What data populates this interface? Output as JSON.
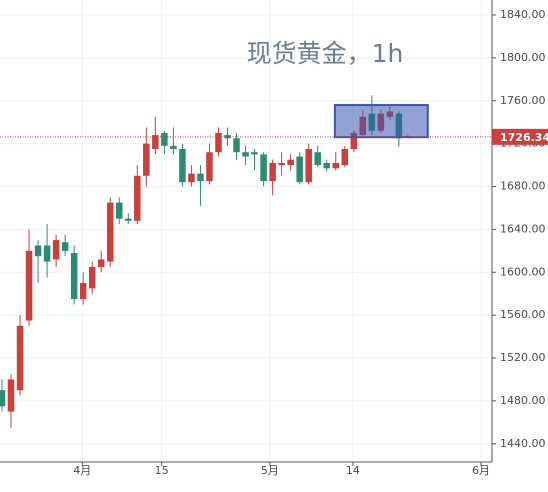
{
  "chart_data": {
    "type": "candlestick",
    "title": "现货黄金，1h",
    "up_color": "#c9403c",
    "down_color": "#2e8a72",
    "open": [
      1490,
      1470,
      1490,
      1555,
      1625,
      1625,
      1612,
      1628,
      1618,
      1575,
      1585,
      1605,
      1610,
      1665,
      1650,
      1648,
      1690,
      1715,
      1730,
      1718,
      1715,
      1684,
      1692,
      1685,
      1712,
      1728,
      1725,
      1712,
      1712,
      1710,
      1685,
      1700,
      1700,
      1708,
      1684,
      1712,
      1702,
      1697,
      1700,
      1715,
      1728,
      1748,
      1732,
      1745,
      1748,
      1726
    ],
    "high": [
      1500,
      1505,
      1560,
      1640,
      1630,
      1645,
      1635,
      1635,
      1625,
      1600,
      1610,
      1620,
      1670,
      1670,
      1655,
      1700,
      1735,
      1745,
      1732,
      1735,
      1720,
      1700,
      1700,
      1720,
      1735,
      1735,
      1730,
      1718,
      1715,
      1712,
      1705,
      1712,
      1710,
      1712,
      1720,
      1718,
      1705,
      1712,
      1718,
      1732,
      1752,
      1765,
      1752,
      1755,
      1750,
      1728
    ],
    "low": [
      1470,
      1455,
      1485,
      1550,
      1590,
      1595,
      1605,
      1615,
      1570,
      1570,
      1580,
      1600,
      1605,
      1645,
      1645,
      1645,
      1680,
      1710,
      1710,
      1710,
      1680,
      1680,
      1662,
      1682,
      1708,
      1718,
      1705,
      1700,
      1695,
      1680,
      1672,
      1690,
      1695,
      1682,
      1682,
      1698,
      1694,
      1695,
      1698,
      1712,
      1725,
      1728,
      1730,
      1742,
      1717,
      1725
    ],
    "close": [
      1475,
      1500,
      1550,
      1620,
      1615,
      1610,
      1630,
      1620,
      1575,
      1590,
      1605,
      1612,
      1665,
      1650,
      1648,
      1690,
      1720,
      1728,
      1718,
      1715,
      1684,
      1692,
      1685,
      1712,
      1730,
      1725,
      1712,
      1708,
      1710,
      1685,
      1702,
      1702,
      1705,
      1684,
      1715,
      1700,
      1697,
      1702,
      1715,
      1730,
      1745,
      1732,
      1748,
      1750,
      1725,
      1727
    ],
    "xlim": [
      -0.22,
      54.32
    ],
    "xticks": [
      {
        "value": 8.9,
        "label": "4月"
      },
      {
        "value": 17.7,
        "label": "15"
      },
      {
        "value": 29.7,
        "label": "5月"
      },
      {
        "value": 38.9,
        "label": "14"
      },
      {
        "value": 53.1,
        "label": "6月"
      }
    ],
    "ylim": [
      1423,
      1854
    ],
    "yticks": [
      {
        "value": 1440,
        "label": "1440.00"
      },
      {
        "value": 1480,
        "label": "1480.00"
      },
      {
        "value": 1520,
        "label": "1520.00"
      },
      {
        "value": 1560,
        "label": "1560.00"
      },
      {
        "value": 1600,
        "label": "1600.00"
      },
      {
        "value": 1640,
        "label": "1640.00"
      },
      {
        "value": 1680,
        "label": "1680.00"
      },
      {
        "value": 1720,
        "label": "1720.00"
      },
      {
        "value": 1760,
        "label": "1760.00"
      },
      {
        "value": 1800,
        "label": "1800.00"
      },
      {
        "value": 1840,
        "label": "1840.00"
      }
    ],
    "grid": true,
    "current_price": 1726.34,
    "current_price_color": "#c9403c",
    "highlight": {
      "x": [
        36.9,
        47.2
      ],
      "y": [
        1726,
        1756
      ],
      "color": "#3b55b0"
    }
  }
}
